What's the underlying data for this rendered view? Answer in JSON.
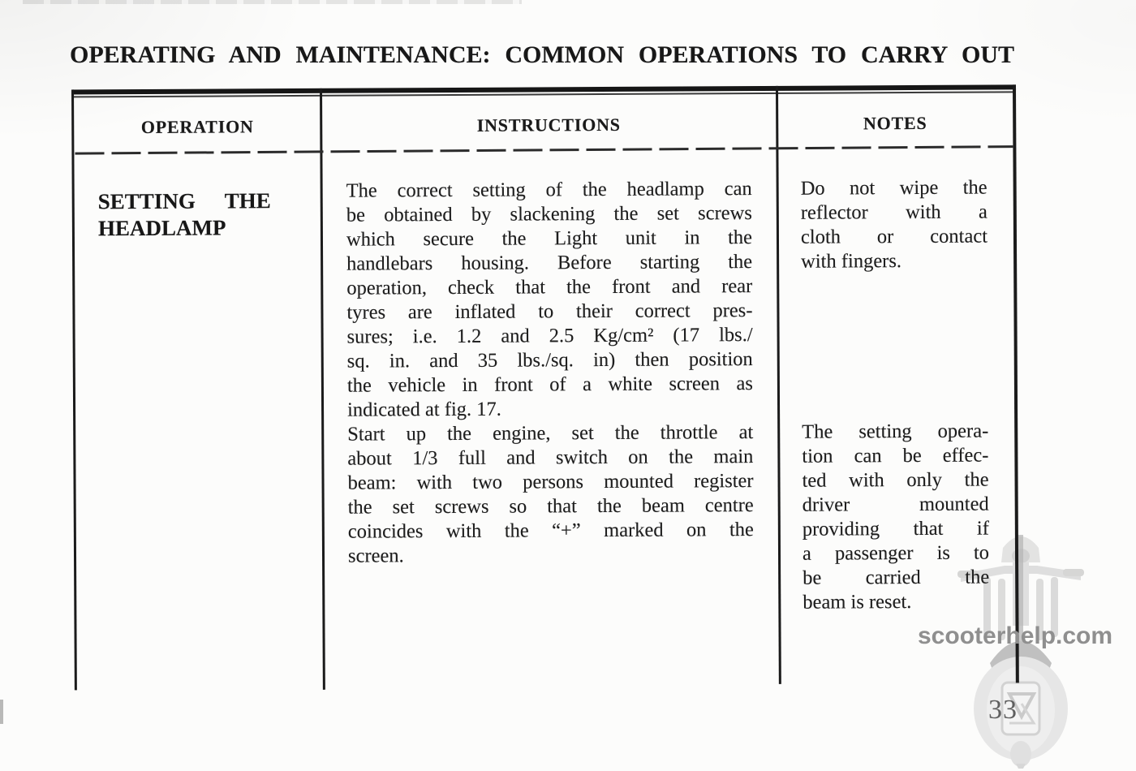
{
  "page": {
    "title": "OPERATING AND MAINTENANCE: COMMON OPERATIONS TO CARRY OUT",
    "page_number": "33"
  },
  "watermark": {
    "site_text": "scooterhelp.com",
    "icon": "vespa-scooter-front-watermark"
  },
  "table": {
    "headers": [
      "OPERATION",
      "INSTRUCTIONS",
      "NOTES"
    ],
    "row": {
      "operation_lines": [
        "SETTING THE",
        "HEADLAMP"
      ],
      "instructions_para1": [
        "The correct setting of the headlamp can",
        "be obtained by slackening the set screws",
        "which secure the Light unit in the",
        "handlebars housing. Before starting the",
        "operation, check that the front and rear",
        "tyres are inflated to their correct pres-",
        "sures; i.e. 1.2 and 2.5 Kg/cm² (17 lbs./",
        "sq. in. and 35 lbs./sq. in) then position",
        "the vehicle in front of a white screen as",
        "indicated at fig. 17."
      ],
      "instructions_para2": [
        "Start up the engine, set the throttle at",
        "about 1/3 full and switch on the main",
        "beam: with two persons mounted register",
        "the set screws so that the beam centre",
        "coincides with the “+” marked on the",
        "screen."
      ],
      "notes_para1": [
        "Do not wipe the",
        "reflector with a",
        "cloth or contact",
        "with fingers."
      ],
      "notes_para2": [
        "The setting opera-",
        "tion can be effec-",
        "ted with only the",
        "driver mounted",
        "providing that if",
        "a passenger is to",
        "be carried the",
        "beam is reset."
      ]
    }
  }
}
